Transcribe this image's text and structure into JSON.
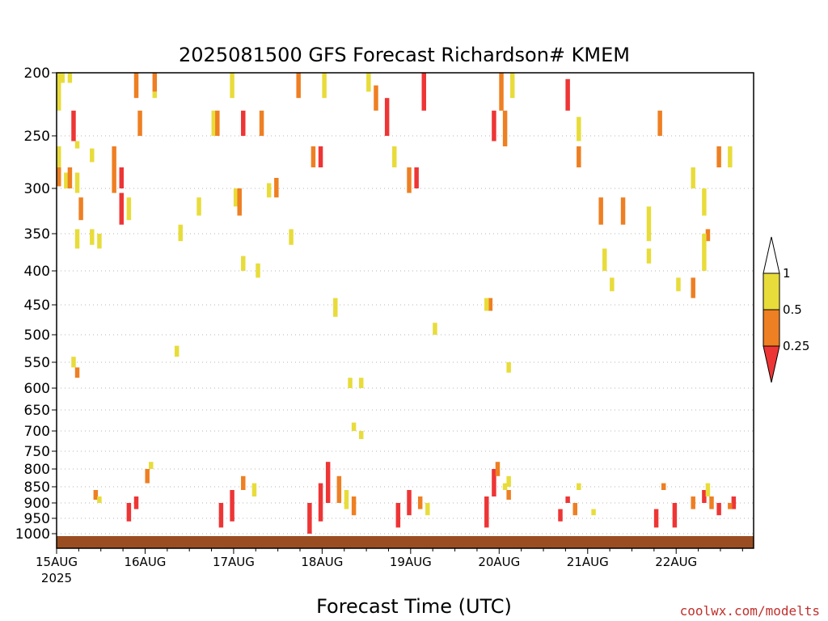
{
  "chart_data": {
    "type": "heatmap",
    "title": "2025081500 GFS Forecast Richardson# KMEM",
    "xlabel": "Forecast Time (UTC)",
    "ylabel": "",
    "credit": "coolwx.com/modelts",
    "yaxis": {
      "scale": "pressure (log-like, inverted)",
      "ticks": [
        200,
        250,
        300,
        350,
        400,
        450,
        500,
        550,
        600,
        650,
        700,
        750,
        800,
        850,
        900,
        950,
        1000
      ]
    },
    "xaxis": {
      "ticks": [
        {
          "label": "15AUG",
          "sublabel": "2025",
          "hours": 0
        },
        {
          "label": "16AUG",
          "sublabel": "",
          "hours": 24
        },
        {
          "label": "17AUG",
          "sublabel": "",
          "hours": 48
        },
        {
          "label": "18AUG",
          "sublabel": "",
          "hours": 72
        },
        {
          "label": "19AUG",
          "sublabel": "",
          "hours": 96
        },
        {
          "label": "20AUG",
          "sublabel": "",
          "hours": 120
        },
        {
          "label": "21AUG",
          "sublabel": "",
          "hours": 144
        },
        {
          "label": "22AUG",
          "sublabel": "",
          "hours": 168
        }
      ],
      "range_hours": [
        0,
        189
      ]
    },
    "legend": {
      "placement": "right",
      "labels": [
        "1",
        "0.5",
        "0.25"
      ],
      "colors": [
        "#ffffff",
        "#e8dc3a",
        "#ee7f22",
        "#ee3535"
      ]
    },
    "colors": {
      "yellow": "#e8dc3a",
      "orange": "#ee7f22",
      "red": "#ee3535",
      "ground": "#9b4d22",
      "grid": "#b4b4b4"
    },
    "cells": [
      {
        "t": 0,
        "p1": 200,
        "p2": 230,
        "c": "y"
      },
      {
        "t": 1,
        "p1": 200,
        "p2": 208,
        "c": "y"
      },
      {
        "t": 3,
        "p1": 200,
        "p2": 208,
        "c": "y"
      },
      {
        "t": 0,
        "p1": 260,
        "p2": 285,
        "c": "y"
      },
      {
        "t": 0,
        "p1": 280,
        "p2": 298,
        "c": "o"
      },
      {
        "t": 2,
        "p1": 285,
        "p2": 300,
        "c": "y"
      },
      {
        "t": 3,
        "p1": 280,
        "p2": 300,
        "c": "o"
      },
      {
        "t": 5,
        "p1": 285,
        "p2": 305,
        "c": "y"
      },
      {
        "t": 6,
        "p1": 310,
        "p2": 335,
        "c": "o"
      },
      {
        "t": 4,
        "p1": 230,
        "p2": 255,
        "c": "r"
      },
      {
        "t": 5,
        "p1": 255,
        "p2": 262,
        "c": "y"
      },
      {
        "t": 5,
        "p1": 345,
        "p2": 370,
        "c": "y"
      },
      {
        "t": 9,
        "p1": 345,
        "p2": 365,
        "c": "y"
      },
      {
        "t": 11,
        "p1": 350,
        "p2": 370,
        "c": "y"
      },
      {
        "t": 9,
        "p1": 262,
        "p2": 275,
        "c": "y"
      },
      {
        "t": 15,
        "p1": 260,
        "p2": 280,
        "c": "o"
      },
      {
        "t": 15,
        "p1": 280,
        "p2": 305,
        "c": "o"
      },
      {
        "t": 17,
        "p1": 280,
        "p2": 300,
        "c": "r"
      },
      {
        "t": 19,
        "p1": 310,
        "p2": 335,
        "c": "y"
      },
      {
        "t": 17,
        "p1": 305,
        "p2": 340,
        "c": "r"
      },
      {
        "t": 21,
        "p1": 200,
        "p2": 220,
        "c": "o"
      },
      {
        "t": 22,
        "p1": 230,
        "p2": 250,
        "c": "o"
      },
      {
        "t": 26,
        "p1": 200,
        "p2": 215,
        "c": "o"
      },
      {
        "t": 26,
        "p1": 215,
        "p2": 220,
        "c": "y"
      },
      {
        "t": 33,
        "p1": 340,
        "p2": 360,
        "c": "y"
      },
      {
        "t": 38,
        "p1": 310,
        "p2": 330,
        "c": "y"
      },
      {
        "t": 42,
        "p1": 230,
        "p2": 250,
        "c": "y"
      },
      {
        "t": 43,
        "p1": 230,
        "p2": 250,
        "c": "o"
      },
      {
        "t": 47,
        "p1": 200,
        "p2": 220,
        "c": "y"
      },
      {
        "t": 48,
        "p1": 300,
        "p2": 320,
        "c": "y"
      },
      {
        "t": 49,
        "p1": 300,
        "p2": 330,
        "c": "o"
      },
      {
        "t": 50,
        "p1": 380,
        "p2": 400,
        "c": "y"
      },
      {
        "t": 50,
        "p1": 230,
        "p2": 250,
        "c": "r"
      },
      {
        "t": 55,
        "p1": 230,
        "p2": 250,
        "c": "o"
      },
      {
        "t": 57,
        "p1": 295,
        "p2": 310,
        "c": "y"
      },
      {
        "t": 59,
        "p1": 290,
        "p2": 310,
        "c": "o"
      },
      {
        "t": 63,
        "p1": 345,
        "p2": 365,
        "c": "y"
      },
      {
        "t": 65,
        "p1": 200,
        "p2": 220,
        "c": "o"
      },
      {
        "t": 69,
        "p1": 260,
        "p2": 280,
        "c": "o"
      },
      {
        "t": 71,
        "p1": 260,
        "p2": 280,
        "c": "r"
      },
      {
        "t": 72,
        "p1": 200,
        "p2": 220,
        "c": "y"
      },
      {
        "t": 84,
        "p1": 200,
        "p2": 215,
        "c": "y"
      },
      {
        "t": 86,
        "p1": 210,
        "p2": 230,
        "c": "o"
      },
      {
        "t": 89,
        "p1": 220,
        "p2": 250,
        "c": "r"
      },
      {
        "t": 91,
        "p1": 260,
        "p2": 280,
        "c": "y"
      },
      {
        "t": 95,
        "p1": 280,
        "p2": 305,
        "c": "o"
      },
      {
        "t": 97,
        "p1": 280,
        "p2": 300,
        "c": "r"
      },
      {
        "t": 99,
        "p1": 200,
        "p2": 230,
        "c": "r"
      },
      {
        "t": 118,
        "p1": 230,
        "p2": 255,
        "c": "r"
      },
      {
        "t": 120,
        "p1": 200,
        "p2": 230,
        "c": "o"
      },
      {
        "t": 121,
        "p1": 230,
        "p2": 260,
        "c": "o"
      },
      {
        "t": 123,
        "p1": 200,
        "p2": 220,
        "c": "y"
      },
      {
        "t": 138,
        "p1": 205,
        "p2": 230,
        "c": "r"
      },
      {
        "t": 141,
        "p1": 235,
        "p2": 255,
        "c": "y"
      },
      {
        "t": 141,
        "p1": 260,
        "p2": 280,
        "c": "o"
      },
      {
        "t": 147,
        "p1": 310,
        "p2": 340,
        "c": "o"
      },
      {
        "t": 153,
        "p1": 310,
        "p2": 340,
        "c": "o"
      },
      {
        "t": 160,
        "p1": 320,
        "p2": 360,
        "c": "y"
      },
      {
        "t": 163,
        "p1": 230,
        "p2": 250,
        "c": "o"
      },
      {
        "t": 172,
        "p1": 280,
        "p2": 300,
        "c": "y"
      },
      {
        "t": 175,
        "p1": 300,
        "p2": 330,
        "c": "y"
      },
      {
        "t": 176,
        "p1": 345,
        "p2": 360,
        "c": "o"
      },
      {
        "t": 179,
        "p1": 260,
        "p2": 280,
        "c": "o"
      },
      {
        "t": 182,
        "p1": 260,
        "p2": 280,
        "c": "y"
      },
      {
        "t": 168,
        "p1": 410,
        "p2": 430,
        "c": "y"
      },
      {
        "t": 172,
        "p1": 410,
        "p2": 440,
        "c": "o"
      },
      {
        "t": 150,
        "p1": 410,
        "p2": 430,
        "c": "y"
      },
      {
        "t": 148,
        "p1": 370,
        "p2": 400,
        "c": "y"
      },
      {
        "t": 160,
        "p1": 370,
        "p2": 390,
        "c": "y"
      },
      {
        "t": 175,
        "p1": 350,
        "p2": 400,
        "c": "y"
      },
      {
        "t": 117,
        "p1": 440,
        "p2": 460,
        "c": "o"
      },
      {
        "t": 116,
        "p1": 440,
        "p2": 460,
        "c": "y"
      },
      {
        "t": 122,
        "p1": 550,
        "p2": 570,
        "c": "y"
      },
      {
        "t": 79,
        "p1": 580,
        "p2": 600,
        "c": "y"
      },
      {
        "t": 82,
        "p1": 580,
        "p2": 600,
        "c": "y"
      },
      {
        "t": 80,
        "p1": 680,
        "p2": 700,
        "c": "y"
      },
      {
        "t": 82,
        "p1": 700,
        "p2": 720,
        "c": "y"
      },
      {
        "t": 4,
        "p1": 540,
        "p2": 560,
        "c": "y"
      },
      {
        "t": 5,
        "p1": 560,
        "p2": 580,
        "c": "o"
      },
      {
        "t": 32,
        "p1": 520,
        "p2": 540,
        "c": "y"
      },
      {
        "t": 102,
        "p1": 480,
        "p2": 500,
        "c": "y"
      },
      {
        "t": 75,
        "p1": 440,
        "p2": 470,
        "c": "y"
      },
      {
        "t": 54,
        "p1": 390,
        "p2": 410,
        "c": "y"
      },
      {
        "t": 10,
        "p1": 860,
        "p2": 890,
        "c": "o"
      },
      {
        "t": 11,
        "p1": 880,
        "p2": 900,
        "c": "y"
      },
      {
        "t": 19,
        "p1": 900,
        "p2": 960,
        "c": "r"
      },
      {
        "t": 21,
        "p1": 880,
        "p2": 920,
        "c": "r"
      },
      {
        "t": 24,
        "p1": 800,
        "p2": 840,
        "c": "o"
      },
      {
        "t": 25,
        "p1": 780,
        "p2": 800,
        "c": "y"
      },
      {
        "t": 44,
        "p1": 900,
        "p2": 980,
        "c": "r"
      },
      {
        "t": 47,
        "p1": 860,
        "p2": 960,
        "c": "r"
      },
      {
        "t": 50,
        "p1": 820,
        "p2": 860,
        "c": "o"
      },
      {
        "t": 53,
        "p1": 840,
        "p2": 880,
        "c": "y"
      },
      {
        "t": 68,
        "p1": 900,
        "p2": 1000,
        "c": "r"
      },
      {
        "t": 71,
        "p1": 840,
        "p2": 960,
        "c": "r"
      },
      {
        "t": 73,
        "p1": 780,
        "p2": 900,
        "c": "r"
      },
      {
        "t": 76,
        "p1": 820,
        "p2": 900,
        "c": "o"
      },
      {
        "t": 78,
        "p1": 860,
        "p2": 920,
        "c": "y"
      },
      {
        "t": 80,
        "p1": 880,
        "p2": 940,
        "c": "o"
      },
      {
        "t": 92,
        "p1": 900,
        "p2": 980,
        "c": "r"
      },
      {
        "t": 95,
        "p1": 860,
        "p2": 940,
        "c": "r"
      },
      {
        "t": 98,
        "p1": 880,
        "p2": 920,
        "c": "o"
      },
      {
        "t": 100,
        "p1": 900,
        "p2": 940,
        "c": "y"
      },
      {
        "t": 116,
        "p1": 880,
        "p2": 980,
        "c": "r"
      },
      {
        "t": 118,
        "p1": 800,
        "p2": 880,
        "c": "r"
      },
      {
        "t": 119,
        "p1": 780,
        "p2": 820,
        "c": "o"
      },
      {
        "t": 122,
        "p1": 820,
        "p2": 850,
        "c": "y"
      },
      {
        "t": 122,
        "p1": 860,
        "p2": 890,
        "c": "o"
      },
      {
        "t": 136,
        "p1": 920,
        "p2": 960,
        "c": "r"
      },
      {
        "t": 138,
        "p1": 880,
        "p2": 900,
        "c": "r"
      },
      {
        "t": 140,
        "p1": 900,
        "p2": 940,
        "c": "o"
      },
      {
        "t": 145,
        "p1": 920,
        "p2": 940,
        "c": "y"
      },
      {
        "t": 162,
        "p1": 920,
        "p2": 980,
        "c": "r"
      },
      {
        "t": 167,
        "p1": 900,
        "p2": 980,
        "c": "r"
      },
      {
        "t": 172,
        "p1": 880,
        "p2": 920,
        "c": "o"
      },
      {
        "t": 175,
        "p1": 860,
        "p2": 900,
        "c": "r"
      },
      {
        "t": 177,
        "p1": 880,
        "p2": 920,
        "c": "o"
      },
      {
        "t": 179,
        "p1": 900,
        "p2": 940,
        "c": "r"
      },
      {
        "t": 183,
        "p1": 880,
        "p2": 920,
        "c": "r"
      },
      {
        "t": 176,
        "p1": 840,
        "p2": 880,
        "c": "y"
      },
      {
        "t": 182,
        "p1": 900,
        "p2": 920,
        "c": "o"
      },
      {
        "t": 164,
        "p1": 840,
        "p2": 860,
        "c": "o"
      },
      {
        "t": 141,
        "p1": 840,
        "p2": 860,
        "c": "y"
      },
      {
        "t": 121,
        "p1": 840,
        "p2": 860,
        "c": "y"
      }
    ]
  }
}
